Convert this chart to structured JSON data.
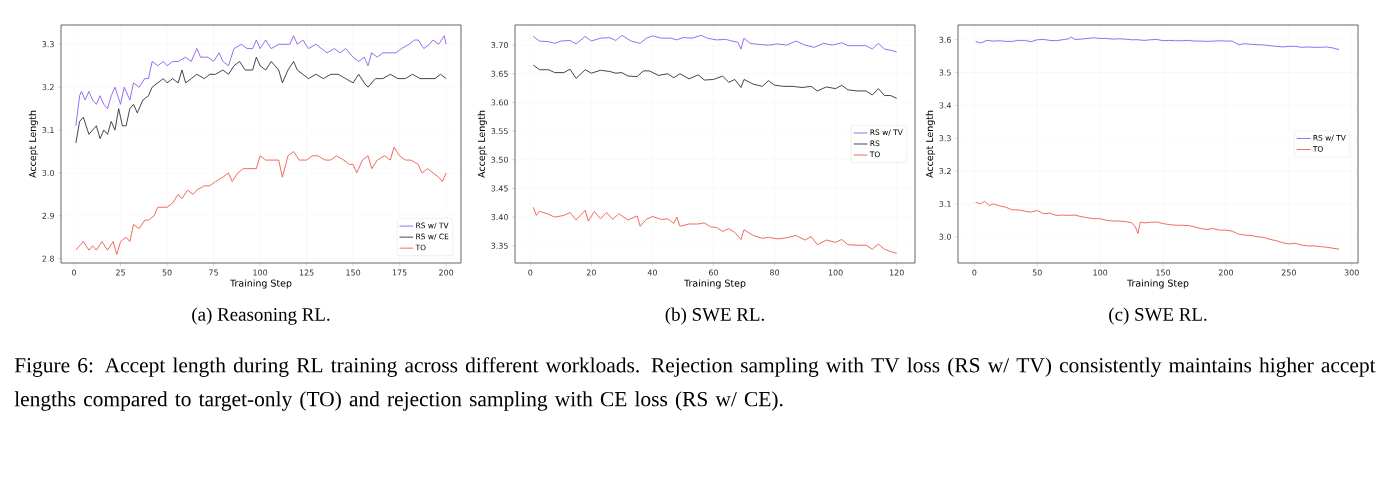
{
  "chart_data": [
    {
      "type": "line",
      "title": "(a) Reasoning RL.",
      "xlabel": "Training Step",
      "ylabel": "Accept Length",
      "xlim": [
        -7,
        208
      ],
      "ylim": [
        2.79,
        3.345
      ],
      "xticks": [
        0,
        25,
        50,
        75,
        100,
        125,
        150,
        175,
        200
      ],
      "yticks": [
        {
          "value": 2.8,
          "label": "2.8"
        },
        {
          "value": 2.9,
          "label": "2.9"
        },
        {
          "value": 3.0,
          "label": "3.0"
        },
        {
          "value": 3.1,
          "label": "3.1"
        },
        {
          "value": 3.2,
          "label": "3.2"
        },
        {
          "value": 3.3,
          "label": "3.3"
        }
      ],
      "grid": true,
      "legend": "bottom right",
      "annotations": [
        "Figure 6: Accept length during RL training across different workloads. Rejection sampling with TV loss (RS w/ TV) consistently maintains higher accept lengths compared to target-only (TO) and rejection sampling with CE loss (RS w/ CE)."
      ],
      "series": [
        {
          "name": "RS w/ TV",
          "color": "#8b5cf6",
          "x": [
            1,
            3,
            4,
            6,
            8,
            10,
            12,
            14,
            16,
            18,
            20,
            22,
            25,
            27,
            30,
            32,
            35,
            38,
            40,
            42,
            45,
            48,
            50,
            53,
            56,
            60,
            63,
            66,
            68,
            72,
            75,
            78,
            80,
            83,
            86,
            90,
            93,
            96,
            98,
            100,
            103,
            106,
            110,
            113,
            116,
            118,
            120,
            123,
            126,
            130,
            133,
            136,
            140,
            143,
            146,
            150,
            153,
            156,
            158,
            160,
            163,
            166,
            170,
            173,
            176,
            180,
            183,
            185,
            188,
            191,
            193,
            196,
            199,
            200
          ],
          "values": [
            3.11,
            3.18,
            3.19,
            3.17,
            3.19,
            3.17,
            3.16,
            3.18,
            3.16,
            3.15,
            3.18,
            3.2,
            3.16,
            3.2,
            3.17,
            3.21,
            3.2,
            3.22,
            3.22,
            3.26,
            3.25,
            3.26,
            3.25,
            3.26,
            3.26,
            3.27,
            3.26,
            3.29,
            3.27,
            3.27,
            3.26,
            3.28,
            3.26,
            3.25,
            3.29,
            3.3,
            3.29,
            3.29,
            3.31,
            3.29,
            3.31,
            3.29,
            3.3,
            3.3,
            3.3,
            3.32,
            3.3,
            3.31,
            3.29,
            3.3,
            3.29,
            3.28,
            3.29,
            3.28,
            3.29,
            3.27,
            3.26,
            3.27,
            3.25,
            3.28,
            3.27,
            3.28,
            3.28,
            3.28,
            3.29,
            3.3,
            3.31,
            3.31,
            3.29,
            3.3,
            3.31,
            3.3,
            3.32,
            3.3
          ]
        },
        {
          "name": "RS w/ CE",
          "color": "#2f2f3a",
          "x": [
            1,
            3,
            5,
            8,
            10,
            12,
            14,
            16,
            18,
            20,
            22,
            24,
            26,
            28,
            30,
            32,
            34,
            37,
            40,
            42,
            45,
            48,
            50,
            53,
            56,
            58,
            60,
            63,
            66,
            70,
            73,
            76,
            80,
            83,
            86,
            89,
            92,
            96,
            98,
            100,
            103,
            106,
            110,
            112,
            115,
            118,
            120,
            123,
            126,
            130,
            134,
            138,
            142,
            146,
            150,
            153,
            156,
            158,
            162,
            166,
            170,
            174,
            178,
            182,
            186,
            190,
            194,
            197,
            200
          ],
          "values": [
            3.07,
            3.12,
            3.13,
            3.09,
            3.1,
            3.11,
            3.08,
            3.1,
            3.09,
            3.12,
            3.1,
            3.15,
            3.11,
            3.11,
            3.15,
            3.16,
            3.14,
            3.17,
            3.18,
            3.2,
            3.21,
            3.22,
            3.21,
            3.22,
            3.21,
            3.24,
            3.21,
            3.22,
            3.23,
            3.22,
            3.23,
            3.23,
            3.24,
            3.23,
            3.25,
            3.26,
            3.24,
            3.24,
            3.27,
            3.25,
            3.24,
            3.26,
            3.24,
            3.21,
            3.24,
            3.26,
            3.24,
            3.23,
            3.22,
            3.23,
            3.22,
            3.23,
            3.23,
            3.22,
            3.21,
            3.23,
            3.21,
            3.2,
            3.22,
            3.22,
            3.23,
            3.22,
            3.22,
            3.23,
            3.22,
            3.22,
            3.22,
            3.23,
            3.22
          ]
        },
        {
          "name": "TO",
          "color": "#ef5a4c",
          "x": [
            1,
            3,
            5,
            8,
            10,
            12,
            15,
            18,
            21,
            23,
            25,
            28,
            30,
            32,
            35,
            38,
            40,
            43,
            45,
            48,
            50,
            53,
            56,
            58,
            61,
            64,
            66,
            70,
            73,
            76,
            80,
            83,
            85,
            88,
            91,
            94,
            98,
            100,
            103,
            106,
            110,
            112,
            115,
            118,
            121,
            125,
            128,
            131,
            135,
            138,
            141,
            145,
            148,
            150,
            152,
            155,
            158,
            160,
            163,
            167,
            170,
            172,
            175,
            178,
            181,
            185,
            187,
            190,
            193,
            196,
            198,
            200
          ],
          "values": [
            2.82,
            2.83,
            2.84,
            2.82,
            2.83,
            2.82,
            2.84,
            2.82,
            2.84,
            2.81,
            2.84,
            2.85,
            2.84,
            2.88,
            2.87,
            2.89,
            2.89,
            2.9,
            2.92,
            2.92,
            2.92,
            2.93,
            2.95,
            2.94,
            2.96,
            2.95,
            2.96,
            2.97,
            2.97,
            2.98,
            2.99,
            3.0,
            2.98,
            3.0,
            3.01,
            3.01,
            3.01,
            3.04,
            3.03,
            3.03,
            3.03,
            2.99,
            3.04,
            3.05,
            3.03,
            3.03,
            3.04,
            3.04,
            3.03,
            3.03,
            3.04,
            3.03,
            3.02,
            3.02,
            3.0,
            3.03,
            3.04,
            3.01,
            3.03,
            3.04,
            3.03,
            3.06,
            3.04,
            3.03,
            3.03,
            3.02,
            3.0,
            3.01,
            3.0,
            2.99,
            2.98,
            3.0
          ]
        }
      ]
    },
    {
      "type": "line",
      "title": "(b) SWE RL.",
      "xlabel": "Training Step",
      "ylabel": "Accept Length",
      "xlim": [
        -5,
        126
      ],
      "ylim": [
        3.32,
        3.735
      ],
      "xticks": [
        0,
        20,
        40,
        60,
        80,
        100,
        120
      ],
      "yticks": [
        {
          "value": 3.35,
          "label": "3.35"
        },
        {
          "value": 3.4,
          "label": "3.40"
        },
        {
          "value": 3.45,
          "label": "3.45"
        },
        {
          "value": 3.5,
          "label": "3.50"
        },
        {
          "value": 3.55,
          "label": "3.55"
        },
        {
          "value": 3.6,
          "label": "3.60"
        },
        {
          "value": 3.65,
          "label": "3.65"
        },
        {
          "value": 3.7,
          "label": "3.70"
        }
      ],
      "grid": true,
      "legend": "center right",
      "series": [
        {
          "name": "RS w/ TV",
          "color": "#8b5cf6",
          "x": [
            1,
            3,
            6,
            8,
            10,
            13,
            15,
            18,
            20,
            23,
            26,
            28,
            30,
            33,
            36,
            38,
            40,
            43,
            46,
            48,
            50,
            53,
            56,
            58,
            61,
            64,
            66,
            68,
            69,
            70,
            72,
            75,
            78,
            81,
            84,
            87,
            90,
            93,
            96,
            99,
            102,
            104,
            107,
            110,
            112,
            114,
            116,
            118,
            120
          ],
          "values": [
            3.715,
            3.707,
            3.706,
            3.703,
            3.707,
            3.708,
            3.702,
            3.715,
            3.707,
            3.712,
            3.713,
            3.708,
            3.717,
            3.707,
            3.703,
            3.712,
            3.716,
            3.712,
            3.712,
            3.709,
            3.713,
            3.712,
            3.717,
            3.712,
            3.709,
            3.71,
            3.707,
            3.705,
            3.693,
            3.712,
            3.703,
            3.701,
            3.7,
            3.702,
            3.7,
            3.707,
            3.7,
            3.696,
            3.703,
            3.7,
            3.704,
            3.699,
            3.699,
            3.699,
            3.693,
            3.703,
            3.693,
            3.691,
            3.688
          ]
        },
        {
          "name": "RS",
          "color": "#2f2f3a",
          "x": [
            1,
            3,
            6,
            8,
            11,
            13,
            15,
            18,
            20,
            23,
            26,
            28,
            30,
            32,
            35,
            37,
            39,
            42,
            45,
            47,
            49,
            52,
            55,
            57,
            60,
            63,
            65,
            67,
            69,
            70,
            73,
            76,
            78,
            80,
            83,
            86,
            89,
            92,
            94,
            97,
            100,
            102,
            104,
            107,
            110,
            112,
            114,
            116,
            118,
            120
          ],
          "values": [
            3.665,
            3.657,
            3.657,
            3.652,
            3.652,
            3.658,
            3.642,
            3.657,
            3.651,
            3.656,
            3.654,
            3.651,
            3.652,
            3.646,
            3.645,
            3.655,
            3.655,
            3.647,
            3.65,
            3.643,
            3.65,
            3.641,
            3.648,
            3.639,
            3.64,
            3.646,
            3.635,
            3.64,
            3.626,
            3.64,
            3.632,
            3.628,
            3.638,
            3.63,
            3.628,
            3.628,
            3.626,
            3.628,
            3.62,
            3.627,
            3.624,
            3.63,
            3.622,
            3.62,
            3.62,
            3.613,
            3.624,
            3.612,
            3.612,
            3.607
          ]
        },
        {
          "name": "TO",
          "color": "#ef5a4c",
          "x": [
            1,
            2,
            3,
            6,
            8,
            11,
            13,
            15,
            18,
            19,
            21,
            23,
            25,
            27,
            29,
            32,
            35,
            36,
            38,
            40,
            43,
            45,
            47,
            48,
            49,
            52,
            55,
            57,
            59,
            61,
            63,
            65,
            67,
            69,
            70,
            73,
            76,
            78,
            81,
            84,
            87,
            90,
            92,
            94,
            97,
            100,
            102,
            104,
            107,
            110,
            112,
            114,
            116,
            118,
            120
          ],
          "values": [
            3.417,
            3.403,
            3.41,
            3.405,
            3.4,
            3.403,
            3.408,
            3.395,
            3.412,
            3.393,
            3.41,
            3.397,
            3.408,
            3.396,
            3.406,
            3.395,
            3.402,
            3.384,
            3.396,
            3.401,
            3.396,
            3.397,
            3.389,
            3.4,
            3.384,
            3.388,
            3.388,
            3.39,
            3.383,
            3.382,
            3.375,
            3.38,
            3.373,
            3.361,
            3.378,
            3.368,
            3.363,
            3.365,
            3.362,
            3.364,
            3.368,
            3.36,
            3.366,
            3.352,
            3.36,
            3.356,
            3.361,
            3.352,
            3.351,
            3.351,
            3.344,
            3.353,
            3.344,
            3.34,
            3.337
          ]
        }
      ]
    },
    {
      "type": "line",
      "title": "(c) SWE RL.",
      "xlabel": "Training Step",
      "ylabel": "Accept Length",
      "xlim": [
        -13,
        305
      ],
      "ylim": [
        2.92,
        3.645
      ],
      "xticks": [
        0,
        50,
        100,
        150,
        200,
        250,
        300
      ],
      "yticks": [
        {
          "value": 3.0,
          "label": "3.0"
        },
        {
          "value": 3.1,
          "label": "3.1"
        },
        {
          "value": 3.2,
          "label": "3.2"
        },
        {
          "value": 3.3,
          "label": "3.3"
        },
        {
          "value": 3.4,
          "label": "3.4"
        },
        {
          "value": 3.5,
          "label": "3.5"
        },
        {
          "value": 3.6,
          "label": "3.6"
        }
      ],
      "grid": true,
      "legend": "center right",
      "series": [
        {
          "name": "RS w/ TV",
          "color": "#8b5cf6",
          "x": [
            1,
            5,
            10,
            15,
            20,
            25,
            30,
            35,
            40,
            45,
            50,
            55,
            60,
            65,
            70,
            75,
            77,
            80,
            85,
            90,
            95,
            100,
            105,
            110,
            115,
            120,
            125,
            130,
            135,
            140,
            145,
            150,
            155,
            160,
            165,
            170,
            175,
            180,
            185,
            190,
            195,
            200,
            205,
            210,
            215,
            220,
            225,
            230,
            235,
            240,
            245,
            250,
            255,
            260,
            265,
            270,
            275,
            280,
            285,
            290
          ],
          "values": [
            3.595,
            3.59,
            3.598,
            3.596,
            3.597,
            3.595,
            3.595,
            3.598,
            3.598,
            3.594,
            3.6,
            3.601,
            3.598,
            3.597,
            3.6,
            3.603,
            3.608,
            3.601,
            3.602,
            3.604,
            3.606,
            3.604,
            3.604,
            3.602,
            3.603,
            3.602,
            3.6,
            3.6,
            3.598,
            3.6,
            3.601,
            3.597,
            3.598,
            3.597,
            3.597,
            3.598,
            3.596,
            3.596,
            3.595,
            3.596,
            3.597,
            3.596,
            3.596,
            3.585,
            3.588,
            3.586,
            3.585,
            3.584,
            3.582,
            3.58,
            3.578,
            3.58,
            3.58,
            3.577,
            3.578,
            3.577,
            3.577,
            3.578,
            3.575,
            3.57
          ]
        },
        {
          "name": "TO",
          "color": "#ef5a4c",
          "x": [
            1,
            5,
            8,
            12,
            15,
            20,
            25,
            30,
            35,
            40,
            45,
            50,
            55,
            60,
            65,
            70,
            75,
            80,
            85,
            90,
            95,
            100,
            105,
            110,
            115,
            120,
            125,
            128,
            130,
            132,
            135,
            140,
            145,
            150,
            155,
            160,
            165,
            170,
            175,
            180,
            185,
            190,
            195,
            200,
            205,
            210,
            215,
            220,
            225,
            230,
            235,
            240,
            245,
            250,
            255,
            260,
            265,
            270,
            275,
            280,
            285,
            290
          ],
          "values": [
            3.105,
            3.1,
            3.108,
            3.095,
            3.1,
            3.094,
            3.09,
            3.082,
            3.082,
            3.078,
            3.075,
            3.08,
            3.07,
            3.072,
            3.065,
            3.066,
            3.065,
            3.066,
            3.061,
            3.058,
            3.055,
            3.055,
            3.05,
            3.048,
            3.048,
            3.046,
            3.043,
            3.03,
            3.01,
            3.045,
            3.042,
            3.044,
            3.045,
            3.04,
            3.037,
            3.035,
            3.035,
            3.034,
            3.03,
            3.025,
            3.022,
            3.025,
            3.02,
            3.02,
            3.017,
            3.008,
            3.005,
            3.004,
            3.0,
            2.998,
            2.992,
            2.988,
            2.982,
            2.978,
            2.98,
            2.975,
            2.972,
            2.972,
            2.97,
            2.968,
            2.965,
            2.962
          ]
        }
      ]
    }
  ]
}
